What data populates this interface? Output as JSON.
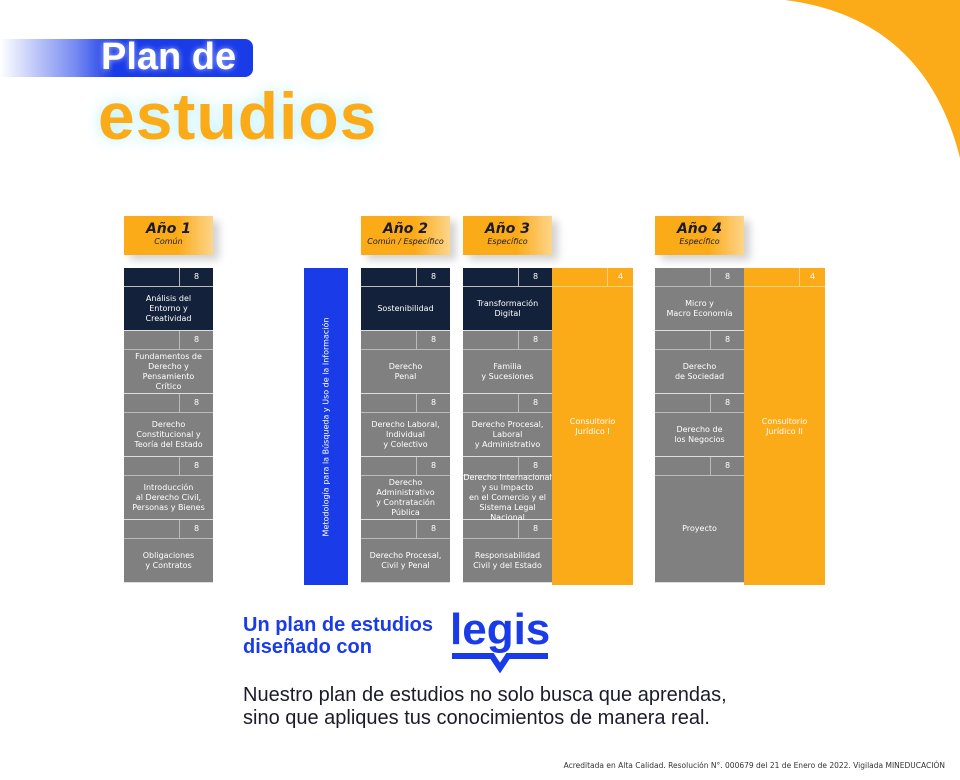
{
  "colors": {
    "navy": "#13213b",
    "gray": "#808080",
    "orange": "#fbab18",
    "blue": "#1a3be8"
  },
  "header": {
    "line1": "Plan de",
    "line2": "estudios"
  },
  "years": [
    {
      "title": "Año 1",
      "subtitle": "Común",
      "subjects": [
        {
          "credits": "8",
          "name": "Análisis del\nEntorno y\nCreatividad",
          "color": "navy"
        },
        {
          "credits": "8",
          "name": "Fundamentos de\nDerecho y\nPensamiento\nCrítico",
          "color": "gray"
        },
        {
          "credits": "8",
          "name": "Derecho\nConstitucional y\nTeoría del Estado",
          "color": "gray"
        },
        {
          "credits": "8",
          "name": "Introducción\nal Derecho Civil,\nPersonas y Bienes",
          "color": "gray"
        },
        {
          "credits": "8",
          "name": "Obligaciones\ny Contratos",
          "color": "gray"
        }
      ]
    },
    {
      "title": "Año 2",
      "subtitle": "Común / Específico",
      "subjects": [
        {
          "credits": "8",
          "name": "Sostenibilidad",
          "color": "navy"
        },
        {
          "credits": "8",
          "name": "Derecho\nPenal",
          "color": "gray"
        },
        {
          "credits": "8",
          "name": "Derecho Laboral,\nIndividual\ny Colectivo",
          "color": "gray"
        },
        {
          "credits": "8",
          "name": "Derecho\nAdministrativo\ny Contratación\nPública",
          "color": "gray"
        },
        {
          "credits": "8",
          "name": "Derecho Procesal,\nCivil y Penal",
          "color": "gray"
        }
      ]
    },
    {
      "title": "Año 3",
      "subtitle": "Específico",
      "subjects": [
        {
          "credits": "8",
          "name": "Transformación\nDigital",
          "color": "navy"
        },
        {
          "credits": "8",
          "name": "Familia\ny Sucesiones",
          "color": "gray"
        },
        {
          "credits": "8",
          "name": "Derecho Procesal,\nLaboral\ny Administrativo",
          "color": "gray"
        },
        {
          "credits": "8",
          "name": "Derecho Internacional\ny su Impacto\nen el Comercio y el\nSistema Legal Nacional",
          "color": "gray"
        },
        {
          "credits": "8",
          "name": "Responsabilidad\nCivil y del Estado",
          "color": "gray"
        }
      ],
      "consultorio": {
        "credits": "4",
        "name": "Consultorio\nJurídico I"
      }
    },
    {
      "title": "Año 4",
      "subtitle": "Específico",
      "subjects": [
        {
          "credits": "8",
          "name": "Micro y\nMacro Economía",
          "color": "gray"
        },
        {
          "credits": "8",
          "name": "Derecho\nde Sociedad",
          "color": "gray"
        },
        {
          "credits": "8",
          "name": "Derecho de\nlos Negocios",
          "color": "gray"
        },
        {
          "credits": "8",
          "name": "Proyecto",
          "color": "gray",
          "tall": true
        }
      ],
      "consultorio": {
        "credits": "4",
        "name": "Consultorio\nJurídico II"
      }
    }
  ],
  "methodology": "Metodología para la Búsqueda y Uso de la Información",
  "tagline": "Un plan de estudios\ndiseñado con",
  "logo": {
    "text": "legis",
    "icon": "open-book-icon"
  },
  "description": "Nuestro plan de estudios no solo busca que aprendas,\nsino que apliques tus conocimientos de manera real.",
  "footer": "Acreditada en Alta Calidad. Resolución N°. 000679 del 21 de Enero de 2022. Vigilada MINEDUCACIÓN"
}
